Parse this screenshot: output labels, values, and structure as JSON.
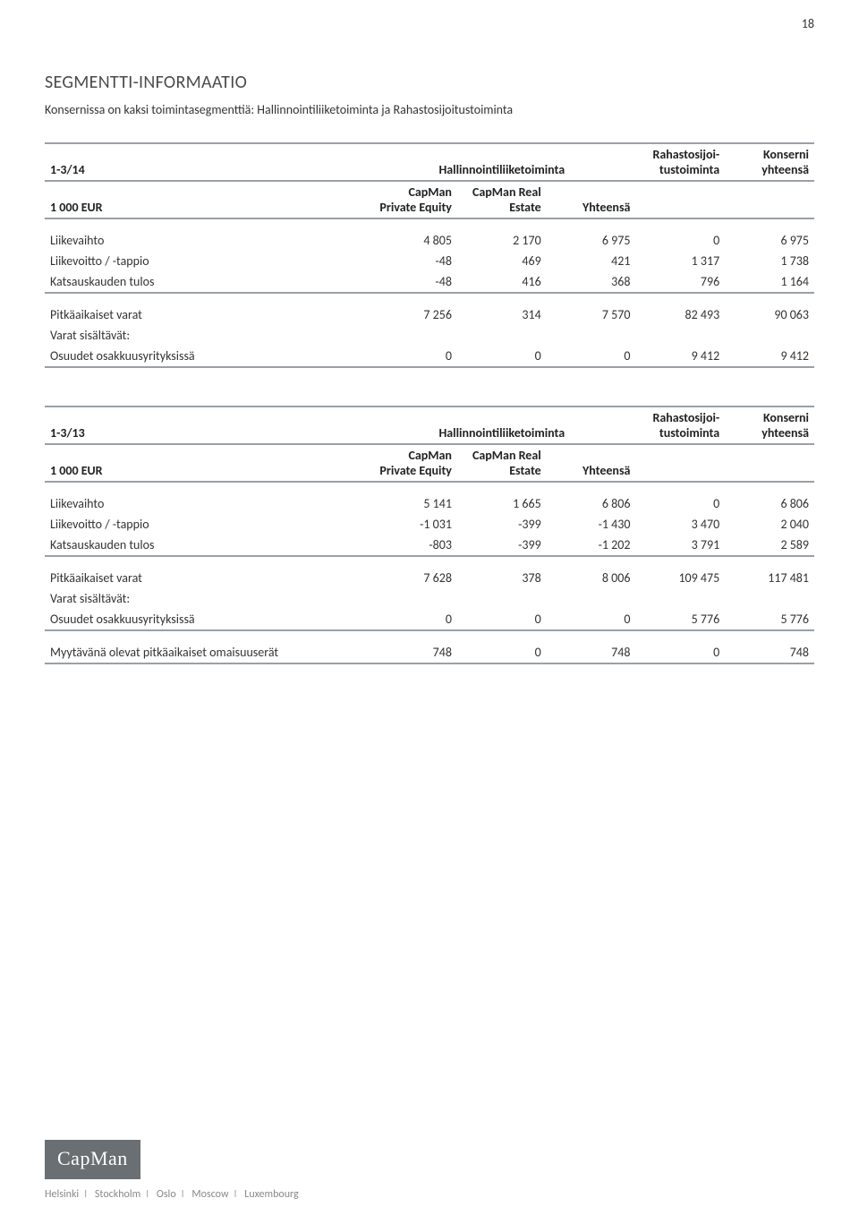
{
  "page_number": "18",
  "section_title": "SEGMENTTI-INFORMAATIO",
  "intro": "Konsernissa on kaksi toimintasegmenttiä: Hallinnointiliiketoiminta ja Rahastosijoitustoiminta",
  "columns": {
    "mgmt_header": "Hallinnointiliiketoiminta",
    "fund_header_l1": "Rahastosijoi-",
    "fund_header_l2": "tustoiminta",
    "group_l1": "Konserni",
    "group_l2": "yhteensä",
    "unit": "1 000 EUR",
    "sub_c1_l1": "CapMan",
    "sub_c1_l2": "Private Equity",
    "sub_c2_l1": "CapMan Real",
    "sub_c2_l2": "Estate",
    "sub_c3": "Yhteensä"
  },
  "row_labels": {
    "liikevaihto": "Liikevaihto",
    "liikevoitto": "Liikevoitto / -tappio",
    "katsaus": "Katsauskauden tulos",
    "pitkaaikaiset": "Pitkäaikaiset varat",
    "varat_sis": "Varat sisältävät:",
    "osuudet": "Osuudet osakkuusyrityksissä",
    "myytavana": "Myytävänä olevat pitkäaikaiset omaisuuserät"
  },
  "tables": [
    {
      "period": "1-3/14",
      "rows": {
        "liikevaihto": [
          "4 805",
          "2 170",
          "6 975",
          "0",
          "6 975"
        ],
        "liikevoitto": [
          "-48",
          "469",
          "421",
          "1 317",
          "1 738"
        ],
        "katsaus": [
          "-48",
          "416",
          "368",
          "796",
          "1 164"
        ],
        "pitkaaikaiset": [
          "7 256",
          "314",
          "7 570",
          "82 493",
          "90 063"
        ],
        "osuudet": [
          "0",
          "0",
          "0",
          "9 412",
          "9 412"
        ]
      }
    },
    {
      "period": "1-3/13",
      "rows": {
        "liikevaihto": [
          "5 141",
          "1 665",
          "6 806",
          "0",
          "6 806"
        ],
        "liikevoitto": [
          "-1 031",
          "-399",
          "-1 430",
          "3 470",
          "2 040"
        ],
        "katsaus": [
          "-803",
          "-399",
          "-1 202",
          "3 791",
          "2 589"
        ],
        "pitkaaikaiset": [
          "7 628",
          "378",
          "8 006",
          "109 475",
          "117 481"
        ],
        "osuudet": [
          "0",
          "0",
          "0",
          "5 776",
          "5 776"
        ],
        "myytavana": [
          "748",
          "0",
          "748",
          "0",
          "748"
        ]
      }
    }
  ],
  "footer": {
    "logo_text": "CapMan",
    "cities": [
      "Helsinki",
      "Stockholm",
      "Oslo",
      "Moscow",
      "Luxembourg"
    ]
  }
}
